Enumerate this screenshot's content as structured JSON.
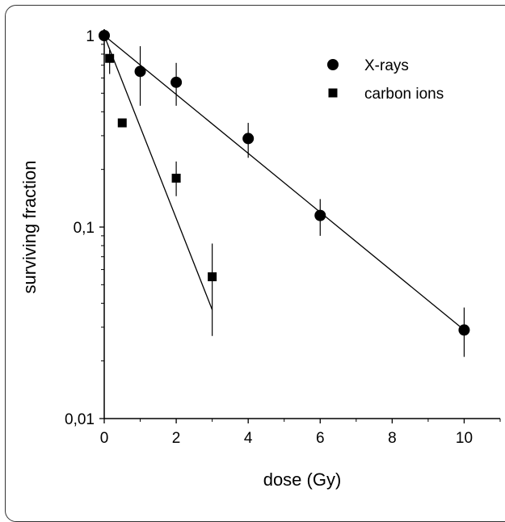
{
  "chart_data": {
    "type": "scatter",
    "title": "",
    "xlabel": "dose (Gy)",
    "ylabel": "surviving fraction",
    "xlim": [
      0,
      11
    ],
    "ylim": [
      0.01,
      1
    ],
    "y_scale": "log",
    "x_ticks": [
      0,
      2,
      4,
      6,
      8,
      10
    ],
    "y_ticks": [
      {
        "value": 1,
        "label": "1"
      },
      {
        "value": 0.1,
        "label": "0,1"
      },
      {
        "value": 0.01,
        "label": "0,01"
      }
    ],
    "grid": false,
    "legend_position": "top-right",
    "series": [
      {
        "name": "X-rays",
        "marker": "circle",
        "points": [
          {
            "x": 0,
            "y": 1.0,
            "err_low": 1.0,
            "err_high": 1.0
          },
          {
            "x": 1,
            "y": 0.65,
            "err_low": 0.43,
            "err_high": 0.88
          },
          {
            "x": 2,
            "y": 0.57,
            "err_low": 0.43,
            "err_high": 0.72
          },
          {
            "x": 4,
            "y": 0.29,
            "err_low": 0.23,
            "err_high": 0.35
          },
          {
            "x": 6,
            "y": 0.115,
            "err_low": 0.09,
            "err_high": 0.14
          },
          {
            "x": 10,
            "y": 0.029,
            "err_low": 0.021,
            "err_high": 0.038
          }
        ],
        "fit": [
          {
            "x": 0,
            "y": 1.0
          },
          {
            "x": 10,
            "y": 0.029
          }
        ]
      },
      {
        "name": "carbon ions",
        "marker": "square",
        "points": [
          {
            "x": 0.15,
            "y": 0.76,
            "err_low": 0.63,
            "err_high": 0.84
          },
          {
            "x": 0.5,
            "y": 0.35,
            "err_low": 0.35,
            "err_high": 0.35
          },
          {
            "x": 2,
            "y": 0.18,
            "err_low": 0.145,
            "err_high": 0.22
          },
          {
            "x": 3,
            "y": 0.055,
            "err_low": 0.027,
            "err_high": 0.082
          }
        ],
        "fit": [
          {
            "x": 0,
            "y": 1.0
          },
          {
            "x": 3,
            "y": 0.037
          }
        ]
      }
    ]
  }
}
